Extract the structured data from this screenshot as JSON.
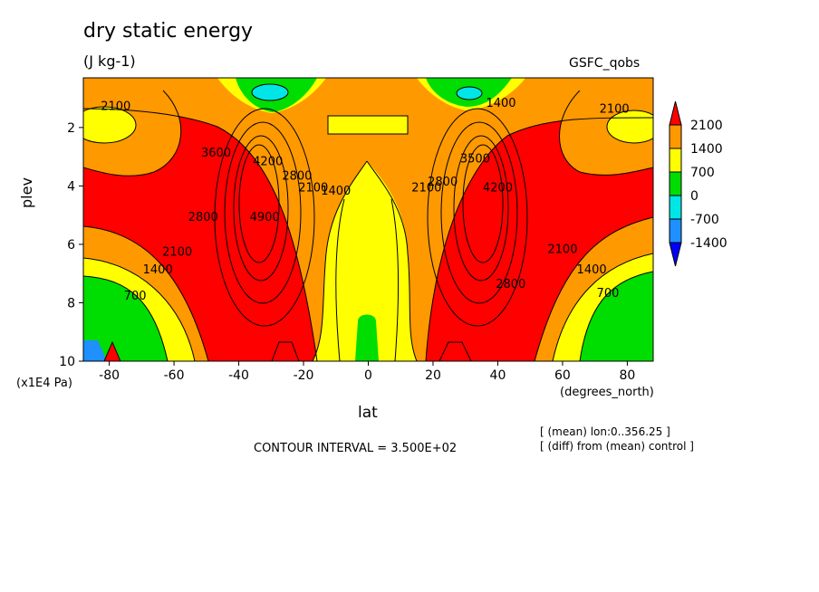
{
  "chart_data": {
    "type": "heatmap",
    "title": "dry static energy",
    "units": "(J kg-1)",
    "run_label": "GSFC_qobs",
    "xlabel": "lat",
    "x_units": "(degrees_north)",
    "ylabel": "plev",
    "y_units": "(x1E4 Pa)",
    "xlim": [
      -88,
      88
    ],
    "ylim": [
      10,
      0.3
    ],
    "x_ticks": [
      -80,
      -60,
      -40,
      -20,
      0,
      20,
      40,
      60,
      80
    ],
    "y_ticks": [
      2,
      4,
      6,
      8,
      10
    ],
    "contour_interval_text": "CONTOUR INTERVAL = 3.500E+02",
    "notes": [
      "[ (mean) lon:0..356.25 ]",
      "[ (diff) from (mean) control ]"
    ],
    "colorbar": {
      "labels": [
        "2100",
        "1400",
        "700",
        "0",
        "-700",
        "-1400"
      ],
      "colors": [
        "#ff0000",
        "#ff9900",
        "#ffff00",
        "#00dd00",
        "#00e6e6",
        "#1e90ff",
        "#0000ff"
      ]
    },
    "contour_labels": [
      {
        "text": "2100",
        "lat": -78,
        "plev": 1.3
      },
      {
        "text": "3600",
        "lat": -47,
        "plev": 2.9
      },
      {
        "text": "4200",
        "lat": -31,
        "plev": 3.2
      },
      {
        "text": "2800",
        "lat": -22,
        "plev": 3.7
      },
      {
        "text": "2100",
        "lat": -17,
        "plev": 4.1
      },
      {
        "text": "1400",
        "lat": -10,
        "plev": 4.2
      },
      {
        "text": "2800",
        "lat": -51,
        "plev": 5.1
      },
      {
        "text": "4900",
        "lat": -32,
        "plev": 5.1
      },
      {
        "text": "2100",
        "lat": -59,
        "plev": 6.3
      },
      {
        "text": "1400",
        "lat": -65,
        "plev": 6.9
      },
      {
        "text": "700",
        "lat": -72,
        "plev": 7.8
      },
      {
        "text": "2100",
        "lat": 18,
        "plev": 4.1
      },
      {
        "text": "2800",
        "lat": 23,
        "plev": 3.9
      },
      {
        "text": "3500",
        "lat": 33,
        "plev": 3.1
      },
      {
        "text": "4200",
        "lat": 40,
        "plev": 4.1
      },
      {
        "text": "1400",
        "lat": 41,
        "plev": 1.2
      },
      {
        "text": "2100",
        "lat": 76,
        "plev": 1.4
      },
      {
        "text": "2800",
        "lat": 44,
        "plev": 7.4
      },
      {
        "text": "2100",
        "lat": 60,
        "plev": 6.2
      },
      {
        "text": "1400",
        "lat": 69,
        "plev": 6.9
      },
      {
        "text": "700",
        "lat": 74,
        "plev": 7.7
      }
    ]
  }
}
